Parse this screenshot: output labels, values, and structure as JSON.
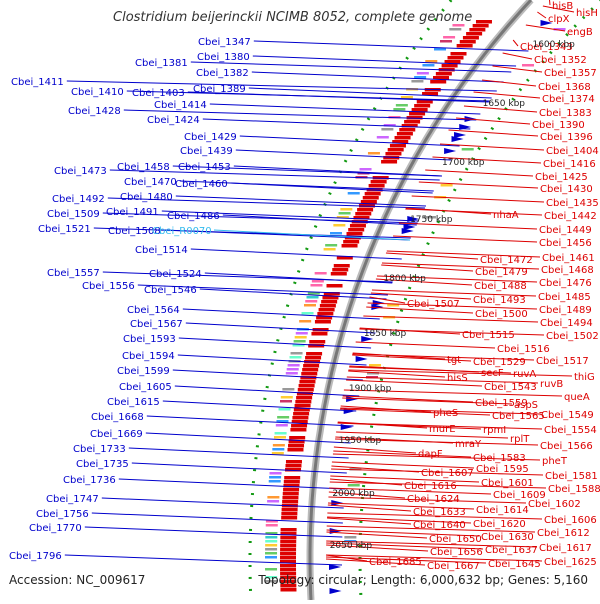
{
  "title": "Clostridium beijerinckii NCIMB 8052, complete genome",
  "footer": {
    "accession": "Accession: NC_009617",
    "summary": "Topology: circular; Length: 6,000,632 bp; Genes: 5,160"
  },
  "colors": {
    "left_gene": "#0000cc",
    "right_gene": "#dd0000",
    "rna": "#33bbee",
    "axis_tick": "#119911",
    "backbone": "#777777"
  },
  "ruler": [
    "1600 kbp",
    "1650 kbp",
    "1700 kbp",
    "1750 kbp",
    "1800 kbp",
    "1850 kbp",
    "1900 kbp",
    "1950 kbp",
    "2000 kbp",
    "2050 kbp"
  ],
  "left_labels": [
    "Cbei_1347",
    "Cbei_1380",
    "Cbei_1381",
    "Cbei_1382",
    "Cbei_1389",
    "Cbei_1411",
    "Cbei_1410",
    "Cbei_1403",
    "Cbei_1414",
    "Cbei_1428",
    "Cbei_1424",
    "Cbei_1429",
    "Cbei_1439",
    "Cbei_1473",
    "Cbei_1458",
    "Cbei_1453",
    "Cbei_1470",
    "Cbei_1460",
    "Cbei_1492",
    "Cbei_1480",
    "Cbei_1509",
    "Cbei_1491",
    "Cbei_1486",
    "Cbei_1521",
    "Cbei_1508",
    "Cbei_R0070",
    "Cbei_1514",
    "Cbei_1557",
    "Cbei_1524",
    "Cbei_1556",
    "Cbei_1546",
    "Cbei_1564",
    "Cbei_1567",
    "Cbei_1593",
    "Cbei_1594",
    "Cbei_1599",
    "Cbei_1605",
    "Cbei_1615",
    "Cbei_1668",
    "Cbei_1669",
    "Cbei_1733",
    "Cbei_1735",
    "Cbei_1736",
    "Cbei_1747",
    "Cbei_1756",
    "Cbei_1770",
    "Cbei_1796"
  ],
  "right_labels": [
    "hisB",
    "hisH",
    "clpX",
    "engB",
    "Cbei_1343",
    "Cbei_1352",
    "Cbei_1357",
    "Cbei_1368",
    "Cbei_1374",
    "Cbei_1383",
    "Cbei_1390",
    "Cbei_1396",
    "Cbei_1404",
    "Cbei_1416",
    "Cbei_1425",
    "Cbei_1430",
    "Cbei_1435",
    "nhaA",
    "Cbei_1442",
    "Cbei_1449",
    "Cbei_1456",
    "Cbei_1472",
    "Cbei_1461",
    "Cbei_1479",
    "Cbei_1468",
    "Cbei_1488",
    "Cbei_1476",
    "Cbei_1485",
    "Cbei_1493",
    "Cbei_1507",
    "Cbei_1489",
    "Cbei_1500",
    "Cbei_1494",
    "Cbei_1515",
    "Cbei_1502",
    "Cbei_1516",
    "tgt",
    "Cbei_1529",
    "Cbei_1517",
    "hisS",
    "secF",
    "ruvA",
    "thiG",
    "Cbei_1543",
    "ruvB",
    "queA",
    "aspS",
    "Cbei_1559",
    "pheS",
    "Cbei_1565",
    "Cbei_1549",
    "rpmI",
    "rplT",
    "Cbei_1554",
    "murE",
    "Cbei_1566",
    "mraY",
    "Cbei_1583",
    "pheT",
    "dapF",
    "Cbei_1595",
    "Cbei_1607",
    "Cbei_1581",
    "Cbei_1616",
    "Cbei_1601",
    "Cbei_1588",
    "Cbei_1624",
    "Cbei_1609",
    "Cbei_1602",
    "Cbei_1633",
    "Cbei_1614",
    "Cbei_1606",
    "Cbei_1640",
    "Cbei_1620",
    "Cbei_1612",
    "Cbei_1630",
    "Cbei_1650",
    "Cbei_1617",
    "Cbei_1637",
    "Cbei_1656",
    "Cbei_1625",
    "Cbei_1645",
    "Cbei_1685",
    "Cbei_1667"
  ]
}
